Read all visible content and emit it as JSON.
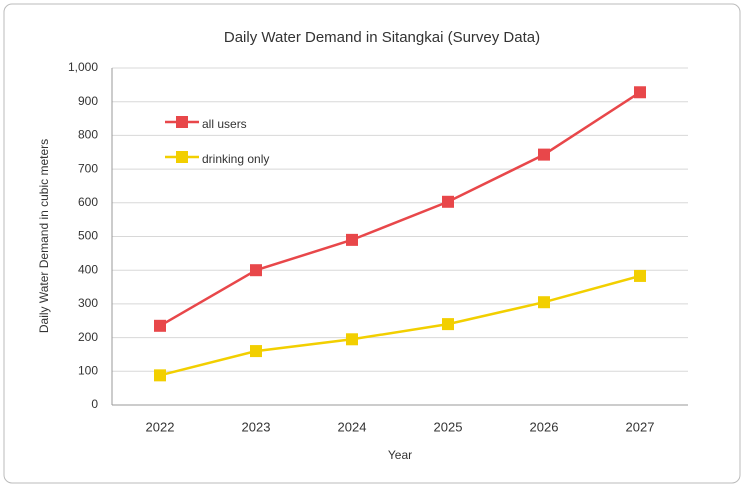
{
  "chart_data": {
    "type": "line",
    "title": "Daily Water Demand in Sitangkai (Survey Data)",
    "xlabel": "Year",
    "ylabel": "Daily Water Demand in cubic meters",
    "categories": [
      "2022",
      "2023",
      "2024",
      "2025",
      "2026",
      "2027"
    ],
    "series": [
      {
        "name": "all users",
        "color": "#e8474a",
        "values": [
          235,
          400,
          490,
          603,
          743,
          928
        ]
      },
      {
        "name": "drinking only",
        "color": "#f2cf00",
        "values": [
          88,
          160,
          195,
          240,
          305,
          383
        ]
      }
    ],
    "ylim": [
      0,
      1000
    ],
    "yticks": [
      0,
      100,
      200,
      300,
      400,
      500,
      600,
      700,
      800,
      900,
      {
        "value": 1000,
        "label": "1,000"
      }
    ],
    "grid": true,
    "legend": "upper left"
  }
}
